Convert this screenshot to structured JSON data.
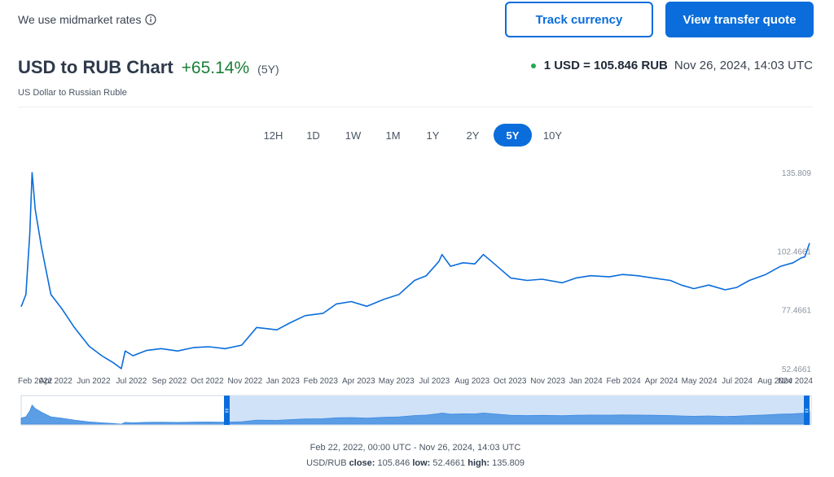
{
  "header": {
    "midmarket_text": "We use midmarket rates",
    "track_button": "Track currency",
    "quote_button": "View transfer quote"
  },
  "title": {
    "pair": "USD to RUB Chart",
    "change": "+65.14%",
    "period": "(5Y)",
    "subtitle": "US Dollar to Russian Ruble"
  },
  "rate": {
    "main": "1 USD = 105.846 RUB",
    "timestamp": "Nov 26, 2024, 14:03 UTC"
  },
  "ranges": [
    "12H",
    "1D",
    "1W",
    "1M",
    "1Y",
    "2Y",
    "5Y",
    "10Y"
  ],
  "active_range": "5Y",
  "colors": {
    "accent": "#0a6ddb",
    "positive": "#1a7f37",
    "live_dot": "#22a94f",
    "line": "#0a6ddb",
    "navigator_fill": "#5b9ee6"
  },
  "footer": {
    "range": "Feb 22, 2022, 00:00 UTC - Nov 26, 2024, 14:03 UTC",
    "pair": "USD/RUB",
    "close_label": "close:",
    "close": "105.846",
    "low_label": "low:",
    "low": "52.4661",
    "high_label": "high:",
    "high": "135.809"
  },
  "chart_data": {
    "type": "line",
    "ylim": [
      52.4661,
      135.809
    ],
    "y_ticks": [
      {
        "label": "135.809",
        "value": 135.809
      },
      {
        "label": "102.4661",
        "value": 102.4661
      },
      {
        "label": "77.4661",
        "value": 77.4661
      },
      {
        "label": "52.4661",
        "value": 52.4661
      }
    ],
    "x_ticks": [
      "Feb 2022",
      "Apr 2022",
      "Jun 2022",
      "Jul 2022",
      "Sep 2022",
      "Oct 2022",
      "Nov 2022",
      "Jan 2023",
      "Feb 2023",
      "Apr 2023",
      "May 2023",
      "Jul 2023",
      "Aug 2023",
      "Oct 2023",
      "Nov 2023",
      "Jan 2024",
      "Feb 2024",
      "Apr 2024",
      "May 2024",
      "Jul 2024",
      "Aug 2024",
      "Nov 2024"
    ],
    "series": [
      {
        "x": [
          "2022-02-22",
          "2022-02-28",
          "2022-03-05",
          "2022-03-08",
          "2022-03-12",
          "2022-03-20",
          "2022-04-01",
          "2022-04-15",
          "2022-05-01",
          "2022-05-20",
          "2022-06-05",
          "2022-06-20",
          "2022-06-30",
          "2022-07-05",
          "2022-07-15",
          "2022-08-01",
          "2022-08-20",
          "2022-09-10",
          "2022-10-01",
          "2022-10-20",
          "2022-11-10",
          "2022-12-01",
          "2022-12-20",
          "2023-01-15",
          "2023-02-01",
          "2023-02-20",
          "2023-03-15",
          "2023-04-01",
          "2023-04-20",
          "2023-05-10",
          "2023-06-01",
          "2023-06-20",
          "2023-07-10",
          "2023-07-25",
          "2023-08-10",
          "2023-08-14",
          "2023-08-25",
          "2023-09-10",
          "2023-09-25",
          "2023-10-06",
          "2023-10-20",
          "2023-11-10",
          "2023-12-01",
          "2023-12-20",
          "2024-01-15",
          "2024-02-01",
          "2024-02-20",
          "2024-03-15",
          "2024-04-01",
          "2024-04-20",
          "2024-05-10",
          "2024-06-01",
          "2024-06-15",
          "2024-07-01",
          "2024-07-20",
          "2024-08-10",
          "2024-08-25",
          "2024-09-10",
          "2024-10-01",
          "2024-10-20",
          "2024-11-05",
          "2024-11-15",
          "2024-11-20",
          "2024-11-26"
        ],
        "y": [
          78.8,
          84.0,
          110.0,
          135.8,
          120.0,
          104.0,
          84.0,
          78.0,
          70.0,
          62.0,
          58.0,
          55.0,
          52.5,
          60.0,
          58.0,
          60.2,
          61.0,
          60.0,
          61.5,
          61.8,
          61.0,
          62.5,
          70.0,
          69.0,
          72.0,
          75.0,
          76.0,
          80.0,
          81.0,
          79.0,
          82.0,
          84.0,
          90.0,
          92.0,
          98.0,
          101.0,
          96.0,
          97.5,
          97.0,
          101.0,
          97.0,
          91.0,
          90.0,
          90.5,
          89.0,
          91.0,
          92.0,
          91.5,
          92.5,
          92.0,
          91.0,
          90.0,
          88.0,
          86.5,
          88.0,
          86.0,
          87.0,
          90.0,
          92.5,
          96.0,
          97.5,
          99.5,
          100.0,
          105.846
        ]
      }
    ]
  }
}
